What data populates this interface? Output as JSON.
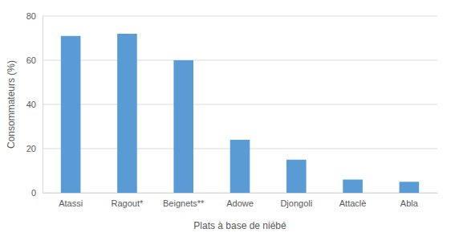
{
  "chart_data": {
    "type": "bar",
    "categories": [
      "Atassi",
      "Ragout*",
      "Beignets**",
      "Adowe",
      "Djongoli",
      "Attaclè",
      "Abla"
    ],
    "values": [
      71,
      72,
      60,
      24,
      15,
      6,
      5
    ],
    "color": "#5b9bd5",
    "x_label": "Plats à base de niébé",
    "y_label": "Consommateurs (%)",
    "ylim": [
      0,
      80
    ],
    "yticks": [
      0,
      20,
      40,
      60,
      80
    ],
    "grid": true
  }
}
